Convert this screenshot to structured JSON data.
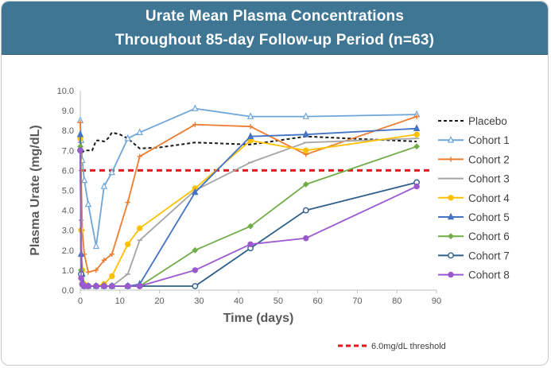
{
  "header": {
    "title_line1": "Urate Mean Plasma Concentrations",
    "title_line2": "Throughout 85-day Follow-up Period (n=63)"
  },
  "chart_data": {
    "type": "line",
    "title": "Urate Mean Plasma Concentrations Throughout 85-day Follow-up Period (n=63)",
    "xlabel": "Time (days)",
    "ylabel": "Plasma Urate (mg/dL)",
    "xlim": [
      0,
      90
    ],
    "ylim": [
      0,
      10
    ],
    "xticks": [
      0,
      10,
      20,
      30,
      40,
      50,
      60,
      70,
      80,
      90
    ],
    "yticks": [
      "0.0",
      "1.0",
      "2.0",
      "3.0",
      "4.0",
      "5.0",
      "6.0",
      "7.0",
      "8.0",
      "9.0",
      "10.0"
    ],
    "threshold": {
      "value": 6.0,
      "label": "6.0mg/dL threshold",
      "color": "#e3191c"
    },
    "legend_position": "right",
    "series": [
      {
        "name": "Placebo",
        "color": "#1a1a1a",
        "dashed": true,
        "marker": "none",
        "x": [
          0,
          0.2,
          0.5,
          1,
          2,
          3,
          4,
          5,
          6,
          7,
          8,
          10,
          12,
          15,
          20,
          29,
          43,
          57,
          85
        ],
        "y": [
          7.0,
          7.1,
          6.9,
          7.0,
          7.0,
          7.0,
          7.5,
          7.5,
          7.45,
          7.6,
          7.9,
          7.8,
          7.6,
          7.1,
          7.15,
          7.4,
          7.3,
          7.7,
          7.45
        ]
      },
      {
        "name": "Cohort 1",
        "color": "#6ea6d9",
        "dashed": false,
        "marker": "triangle-open",
        "x": [
          0,
          0.2,
          0.5,
          1,
          2,
          4,
          6,
          8,
          12,
          15,
          29,
          43,
          57,
          85
        ],
        "y": [
          8.5,
          7.5,
          6.5,
          5.5,
          4.3,
          2.2,
          5.2,
          5.9,
          7.6,
          7.9,
          9.1,
          8.7,
          8.7,
          8.8
        ]
      },
      {
        "name": "Cohort 2",
        "color": "#ed7d31",
        "dashed": false,
        "marker": "plus",
        "x": [
          0,
          0.2,
          0.5,
          1,
          2,
          4,
          6,
          8,
          12,
          15,
          29,
          43,
          57,
          85
        ],
        "y": [
          8.4,
          6.0,
          3.0,
          1.8,
          0.9,
          1.0,
          1.5,
          1.8,
          4.4,
          6.7,
          8.3,
          8.2,
          6.8,
          8.7
        ]
      },
      {
        "name": "Cohort 3",
        "color": "#a5a5a5",
        "dashed": false,
        "marker": "dash",
        "x": [
          0,
          0.2,
          0.5,
          1,
          2,
          4,
          6,
          8,
          12,
          15,
          29,
          43,
          57,
          85
        ],
        "y": [
          7.0,
          3.5,
          1.0,
          0.3,
          0.2,
          0.2,
          0.2,
          0.2,
          0.8,
          2.5,
          5.0,
          6.4,
          7.4,
          7.6
        ]
      },
      {
        "name": "Cohort 4",
        "color": "#ffc000",
        "dashed": false,
        "marker": "circle",
        "x": [
          0,
          0.2,
          0.5,
          1,
          2,
          4,
          6,
          8,
          12,
          15,
          29,
          43,
          57,
          85
        ],
        "y": [
          7.6,
          3.0,
          1.0,
          0.3,
          0.2,
          0.2,
          0.3,
          0.7,
          2.3,
          3.1,
          5.1,
          7.5,
          7.0,
          7.8
        ]
      },
      {
        "name": "Cohort 5",
        "color": "#4472c4",
        "dashed": false,
        "marker": "triangle",
        "x": [
          0,
          0.2,
          0.5,
          1,
          2,
          4,
          6,
          8,
          12,
          15,
          29,
          43,
          57,
          85
        ],
        "y": [
          7.8,
          1.8,
          0.8,
          0.2,
          0.2,
          0.2,
          0.2,
          0.2,
          0.2,
          0.3,
          4.9,
          7.7,
          7.8,
          8.1
        ]
      },
      {
        "name": "Cohort 6",
        "color": "#70ad47",
        "dashed": false,
        "marker": "diamond",
        "x": [
          0,
          0.2,
          0.5,
          1,
          2,
          4,
          6,
          8,
          12,
          15,
          29,
          43,
          57,
          85
        ],
        "y": [
          7.2,
          1.0,
          0.3,
          0.2,
          0.2,
          0.2,
          0.2,
          0.2,
          0.2,
          0.2,
          2.0,
          3.2,
          5.3,
          7.2
        ]
      },
      {
        "name": "Cohort 7",
        "color": "#2f5f8a",
        "dashed": false,
        "marker": "circle-open",
        "x": [
          0,
          0.2,
          0.5,
          1,
          2,
          4,
          6,
          8,
          12,
          15,
          29,
          43,
          57,
          85
        ],
        "y": [
          7.0,
          0.8,
          0.3,
          0.2,
          0.2,
          0.2,
          0.2,
          0.2,
          0.2,
          0.2,
          0.2,
          2.1,
          4.0,
          5.4
        ]
      },
      {
        "name": "Cohort 8",
        "color": "#9b59d0",
        "dashed": false,
        "marker": "circle",
        "x": [
          0,
          0.2,
          0.5,
          1,
          2,
          4,
          6,
          8,
          12,
          15,
          29,
          43,
          57,
          85
        ],
        "y": [
          7.0,
          0.6,
          0.3,
          0.2,
          0.2,
          0.2,
          0.2,
          0.2,
          0.2,
          0.2,
          1.0,
          2.3,
          2.6,
          5.2
        ]
      }
    ]
  }
}
